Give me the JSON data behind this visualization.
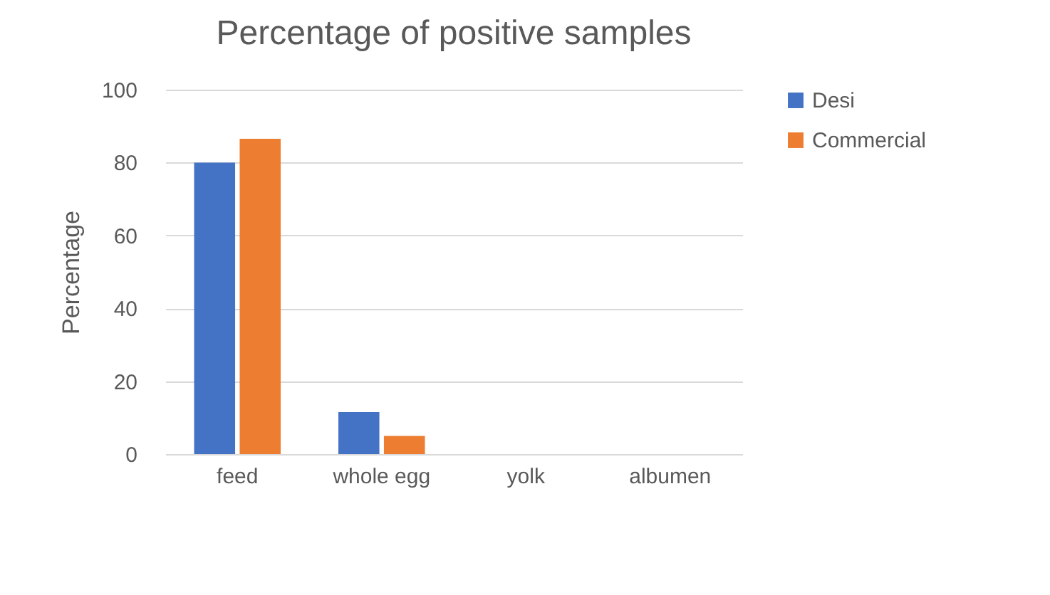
{
  "chart_data": {
    "type": "bar",
    "title": "Percentage of positive samples",
    "ylabel": "Percentage",
    "categories": [
      "feed",
      "whole egg",
      "yolk",
      "albumen"
    ],
    "series": [
      {
        "name": "Desi",
        "color": "#4472c4",
        "values": [
          80,
          11.5,
          0,
          0
        ]
      },
      {
        "name": "Commercial",
        "color": "#ed7d31",
        "values": [
          86.5,
          5,
          0,
          0
        ]
      }
    ],
    "ylim": [
      0,
      100
    ],
    "yticks": [
      0,
      20,
      40,
      60,
      80,
      100
    ],
    "grid": "y",
    "legend": "right"
  }
}
